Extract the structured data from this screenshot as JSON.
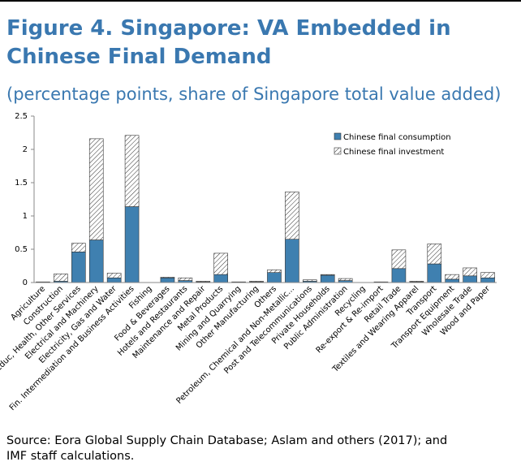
{
  "chart_data": {
    "type": "bar",
    "stacked": true,
    "title": "Figure 4. Singapore: VA Embedded in Chinese Final Demand",
    "subtitle": "(percentage points, share of Singapore total value added)",
    "source": "Source: Eora Global Supply Chain Database; Aslam and others (2017); and IMF staff calculations.",
    "categories": [
      "Agriculture",
      "Construction",
      "Educ, Health, Other Services",
      "Electrical and Machinery",
      "Electricity, Gas and Water",
      "Fin. Intermediation and Business Activities",
      "Fishing",
      "Food & Beverages",
      "Hotels and Restaurants",
      "Maintenance and Repair",
      "Metal Products",
      "Mining and Quarrying",
      "Other Manufacturing",
      "Others",
      "Petroleum, Chemical and Non-Metallic...",
      "Post and Telecommunications",
      "Private Households",
      "Public Administration",
      "Recycling",
      "Re-export & Re-import",
      "Retail Trade",
      "Textiles and Wearing Apparel",
      "Transport",
      "Transport Equipment",
      "Wholesale Trade",
      "Wood and Paper"
    ],
    "series": [
      {
        "name": "Chinese final consumption",
        "color": "#3f80b0",
        "pattern": "solid",
        "values": [
          0.01,
          0.02,
          0.46,
          0.64,
          0.07,
          1.14,
          0.0,
          0.07,
          0.03,
          0.01,
          0.12,
          0.01,
          0.01,
          0.15,
          0.65,
          0.02,
          0.11,
          0.03,
          0.0,
          0.0,
          0.21,
          0.01,
          0.28,
          0.05,
          0.1,
          0.07
        ]
      },
      {
        "name": "Chinese final investment",
        "color": "#ffffff",
        "pattern": "hatch",
        "values": [
          0.0,
          0.11,
          0.13,
          1.52,
          0.07,
          1.07,
          0.0,
          0.01,
          0.04,
          0.01,
          0.32,
          0.0,
          0.01,
          0.04,
          0.71,
          0.02,
          0.01,
          0.03,
          0.0,
          0.01,
          0.28,
          0.01,
          0.3,
          0.07,
          0.12,
          0.08
        ]
      }
    ],
    "ylim": [
      0,
      2.5
    ],
    "yticks": [
      0,
      0.5,
      1,
      1.5,
      2,
      2.5
    ],
    "grid": false,
    "legend": "upper right"
  }
}
